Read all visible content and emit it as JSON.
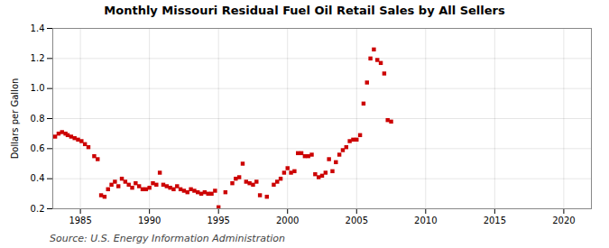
{
  "chart_data": {
    "type": "scatter",
    "title": "Monthly Missouri Residual Fuel Oil Retail Sales by All Sellers",
    "ylabel": "Dollars per Gallon",
    "annotations": [
      "Source: U.S. Energy Information Administration"
    ],
    "color": "#cc0000",
    "marker": "square",
    "grid": true,
    "xlim": [
      1983,
      2022
    ],
    "ylim": [
      0.2,
      1.4
    ],
    "xticks": [
      1985,
      1990,
      1995,
      2000,
      2005,
      2010,
      2015,
      2020
    ],
    "yticks": [
      0.2,
      0.4,
      0.6,
      0.8,
      {
        "value": 1.0,
        "label": "1.0"
      },
      1.2,
      1.4
    ],
    "x": [
      1983.17,
      1983.42,
      1983.67,
      1983.92,
      1984.08,
      1984.33,
      1984.58,
      1984.83,
      1985.08,
      1985.33,
      1985.58,
      1986.0,
      1986.25,
      1986.5,
      1986.75,
      1987.0,
      1987.25,
      1987.5,
      1987.75,
      1988.0,
      1988.25,
      1988.5,
      1988.75,
      1989.0,
      1989.25,
      1989.5,
      1989.75,
      1990.0,
      1990.25,
      1990.5,
      1990.75,
      1991.0,
      1991.25,
      1991.5,
      1991.75,
      1992.0,
      1992.25,
      1992.5,
      1992.75,
      1993.0,
      1993.25,
      1993.5,
      1993.75,
      1994.0,
      1994.25,
      1994.5,
      1994.75,
      1995.0,
      1995.5,
      1996.0,
      1996.25,
      1996.5,
      1996.75,
      1997.0,
      1997.25,
      1997.5,
      1997.75,
      1998.0,
      1998.5,
      1999.0,
      1999.25,
      1999.5,
      1999.75,
      2000.0,
      2000.25,
      2000.5,
      2000.75,
      2001.0,
      2001.25,
      2001.5,
      2001.75,
      2002.0,
      2002.25,
      2002.5,
      2002.75,
      2003.0,
      2003.25,
      2003.5,
      2003.75,
      2004.0,
      2004.25,
      2004.5,
      2004.75,
      2005.0,
      2005.25,
      2005.5,
      2005.75,
      2006.0,
      2006.25,
      2006.5,
      2006.75,
      2007.0,
      2007.25,
      2007.5
    ],
    "values": [
      0.68,
      0.7,
      0.71,
      0.7,
      0.69,
      0.68,
      0.67,
      0.66,
      0.65,
      0.63,
      0.61,
      0.55,
      0.53,
      0.29,
      0.28,
      0.33,
      0.36,
      0.38,
      0.35,
      0.4,
      0.38,
      0.36,
      0.34,
      0.37,
      0.35,
      0.33,
      0.33,
      0.34,
      0.37,
      0.36,
      0.44,
      0.36,
      0.35,
      0.34,
      0.33,
      0.35,
      0.33,
      0.32,
      0.31,
      0.33,
      0.32,
      0.31,
      0.3,
      0.31,
      0.3,
      0.3,
      0.32,
      0.21,
      0.31,
      0.37,
      0.4,
      0.41,
      0.5,
      0.38,
      0.37,
      0.36,
      0.38,
      0.29,
      0.28,
      0.36,
      0.38,
      0.4,
      0.44,
      0.47,
      0.44,
      0.45,
      0.57,
      0.57,
      0.55,
      0.55,
      0.56,
      0.43,
      0.41,
      0.42,
      0.44,
      0.53,
      0.45,
      0.51,
      0.56,
      0.59,
      0.61,
      0.65,
      0.66,
      0.66,
      0.69,
      0.9,
      1.04,
      1.2,
      1.26,
      1.19,
      1.17,
      1.1,
      0.79,
      0.78
    ]
  }
}
